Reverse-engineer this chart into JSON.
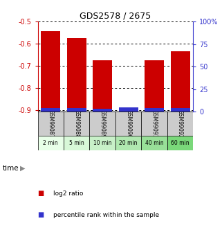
{
  "title": "GDS2578 / 2675",
  "samples": [
    "GSM99087",
    "GSM99088",
    "GSM99089",
    "GSM99090",
    "GSM99091",
    "GSM99092"
  ],
  "time_labels": [
    "2 min",
    "5 min",
    "10 min",
    "20 min",
    "40 min",
    "60 min"
  ],
  "log2_values": [
    -0.545,
    -0.575,
    -0.675,
    -0.905,
    -0.675,
    -0.635
  ],
  "percentile_values": [
    3.5,
    3.5,
    3.0,
    5.0,
    3.5,
    3.5
  ],
  "bar_bottom": -0.905,
  "ylim_left": [
    -0.905,
    -0.5
  ],
  "ylim_right": [
    0,
    100
  ],
  "yticks_left": [
    -0.9,
    -0.8,
    -0.7,
    -0.6,
    -0.5
  ],
  "yticks_right": [
    0,
    25,
    50,
    75,
    100
  ],
  "ytick_right_labels": [
    "0",
    "25",
    "50",
    "75",
    "100%"
  ],
  "bar_color_red": "#cc0000",
  "bar_color_blue": "#3333cc",
  "left_axis_color": "#cc0000",
  "right_axis_color": "#3333cc",
  "time_bg_colors": [
    "#e8ffe8",
    "#d8f8d8",
    "#c8f0c8",
    "#b0e8b0",
    "#98e098",
    "#7ad87a"
  ],
  "sample_bg_color": "#cccccc",
  "legend_items": [
    "log2 ratio",
    "percentile rank within the sample"
  ],
  "legend_colors": [
    "#cc0000",
    "#3333cc"
  ],
  "time_label": "time"
}
